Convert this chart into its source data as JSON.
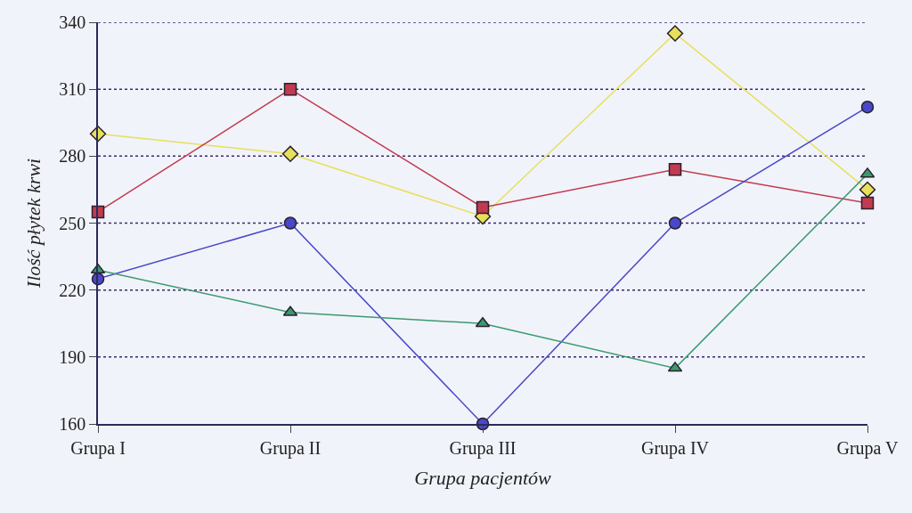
{
  "chart_data": {
    "type": "line",
    "xlabel": "Grupa pacjentów",
    "ylabel": "Ilość płytek krwi",
    "categories": [
      "Grupa I",
      "Grupa II",
      "Grupa III",
      "Grupa IV",
      "Grupa V"
    ],
    "series": [
      {
        "color": "#e6e05a",
        "marker": "diamond",
        "values": [
          290,
          281,
          253,
          335,
          265
        ]
      },
      {
        "color": "#c23a4e",
        "marker": "square",
        "values": [
          255,
          310,
          257,
          274,
          259
        ]
      },
      {
        "color": "#4848c8",
        "marker": "circle",
        "values": [
          225,
          250,
          160,
          250,
          302
        ]
      },
      {
        "color": "#3a9a6e",
        "marker": "triangle",
        "values": [
          229,
          210,
          205,
          185,
          272
        ]
      }
    ],
    "ylim": [
      160,
      340
    ],
    "yticks": [
      160,
      190,
      220,
      250,
      280,
      310,
      340
    ],
    "grid": "y",
    "line_style": "solid"
  }
}
